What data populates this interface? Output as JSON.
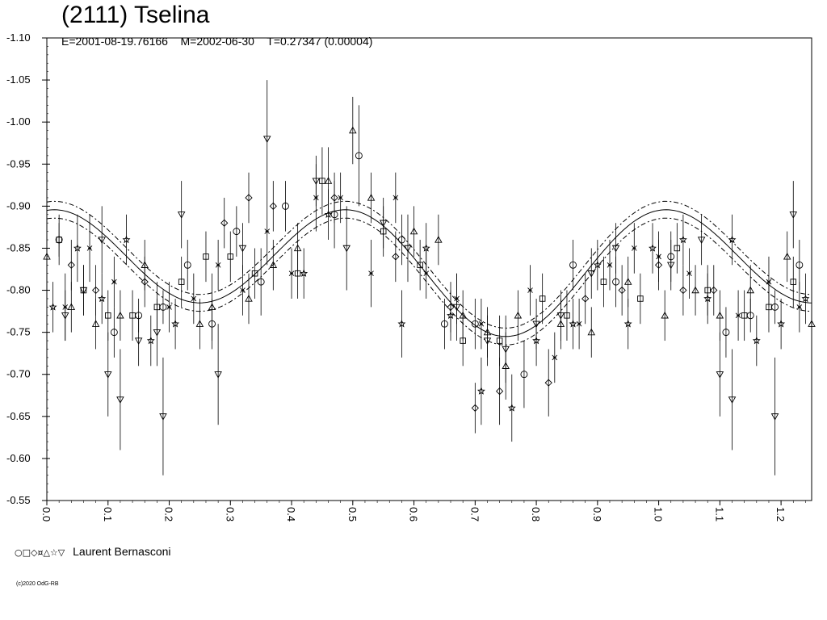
{
  "header": {
    "title": "(2111) Tselina",
    "subtitle": "E=2001-08-19.76166    M=2002-06-30    T=0.27347 (0.00004)"
  },
  "legend": {
    "symbols": "○□◇¤△☆▽",
    "observer": "Laurent Bernasconi"
  },
  "footer": {
    "copyright": "(c)2020 OdG-RB"
  },
  "chart_data": {
    "type": "scatter",
    "title": "(2111) Tselina",
    "subtitle": "E=2001-08-19.76166    M=2002-06-30    T=0.27347 (0.00004)",
    "xlabel": "",
    "ylabel": "",
    "xlim": [
      0.0,
      1.25
    ],
    "ylim": [
      -1.1,
      -0.55
    ],
    "y_inverted_display": true,
    "x_ticks": [
      "0.0",
      "0.1",
      "0.2",
      "0.3",
      "0.4",
      "0.5",
      "0.6",
      "0.7",
      "0.8",
      "0.9",
      "1.0",
      "1.1",
      "1.2"
    ],
    "y_ticks": [
      "-1.10",
      "-1.05",
      "-1.00",
      "-0.95",
      "-0.90",
      "-0.85",
      "-0.80",
      "-0.75",
      "-0.70",
      "-0.65",
      "-0.60",
      "-0.55"
    ],
    "grid": false,
    "legend_position": "bottom-left",
    "fit_curve": {
      "description": "Fourier fit",
      "mean": -0.83,
      "harmonics": [
        {
          "n": 1,
          "amp": 0.02,
          "phase": 0.25
        },
        {
          "n": 2,
          "amp": 0.065,
          "phase": 0.5
        }
      ],
      "band": 0.01
    },
    "series": [
      {
        "name": "",
        "symbol": "circle",
        "points": [
          [
            0.02,
            -0.86,
            0.03
          ],
          [
            0.11,
            -0.75,
            0.03
          ],
          [
            0.15,
            -0.77,
            0.02
          ],
          [
            0.19,
            -0.78,
            0.02
          ],
          [
            0.23,
            -0.83,
            0.03
          ],
          [
            0.27,
            -0.76,
            0.03
          ],
          [
            0.31,
            -0.87,
            0.03
          ],
          [
            0.35,
            -0.81,
            0.04
          ],
          [
            0.39,
            -0.9,
            0.03
          ],
          [
            0.47,
            -0.89,
            0.04
          ],
          [
            0.51,
            -0.96,
            0.06
          ],
          [
            0.58,
            -0.86,
            0.03
          ],
          [
            0.65,
            -0.76,
            0.03
          ],
          [
            0.7,
            -0.76,
            0.03
          ],
          [
            0.78,
            -0.7,
            0.04
          ],
          [
            0.86,
            -0.83,
            0.03
          ],
          [
            0.93,
            -0.81,
            0.03
          ],
          [
            1.02,
            -0.84,
            0.03
          ],
          [
            1.11,
            -0.75,
            0.03
          ],
          [
            1.15,
            -0.77,
            0.02
          ],
          [
            1.19,
            -0.78,
            0.02
          ],
          [
            1.23,
            -0.83,
            0.03
          ]
        ]
      },
      {
        "name": "",
        "symbol": "square",
        "points": [
          [
            0.02,
            -0.86,
            0.02
          ],
          [
            0.06,
            -0.8,
            0.03
          ],
          [
            0.1,
            -0.77,
            0.03
          ],
          [
            0.14,
            -0.77,
            0.03
          ],
          [
            0.18,
            -0.78,
            0.03
          ],
          [
            0.22,
            -0.81,
            0.03
          ],
          [
            0.26,
            -0.84,
            0.03
          ],
          [
            0.3,
            -0.84,
            0.03
          ],
          [
            0.34,
            -0.82,
            0.03
          ],
          [
            0.41,
            -0.82,
            0.03
          ],
          [
            0.45,
            -0.93,
            0.04
          ],
          [
            0.55,
            -0.87,
            0.03
          ],
          [
            0.61,
            -0.83,
            0.03
          ],
          [
            0.68,
            -0.74,
            0.03
          ],
          [
            0.74,
            -0.74,
            0.03
          ],
          [
            0.81,
            -0.79,
            0.03
          ],
          [
            0.85,
            -0.77,
            0.03
          ],
          [
            0.91,
            -0.81,
            0.03
          ],
          [
            0.97,
            -0.79,
            0.03
          ],
          [
            1.03,
            -0.85,
            0.03
          ],
          [
            1.08,
            -0.8,
            0.03
          ],
          [
            1.14,
            -0.77,
            0.03
          ],
          [
            1.18,
            -0.78,
            0.03
          ],
          [
            1.22,
            -0.81,
            0.03
          ]
        ]
      },
      {
        "name": "",
        "symbol": "diamond",
        "points": [
          [
            0.04,
            -0.83,
            0.03
          ],
          [
            0.08,
            -0.8,
            0.03
          ],
          [
            0.16,
            -0.81,
            0.03
          ],
          [
            0.29,
            -0.88,
            0.03
          ],
          [
            0.33,
            -0.91,
            0.03
          ],
          [
            0.37,
            -0.9,
            0.03
          ],
          [
            0.47,
            -0.91,
            0.03
          ],
          [
            0.57,
            -0.84,
            0.03
          ],
          [
            0.66,
            -0.78,
            0.03
          ],
          [
            0.7,
            -0.66,
            0.03
          ],
          [
            0.74,
            -0.68,
            0.04
          ],
          [
            0.82,
            -0.69,
            0.04
          ],
          [
            0.88,
            -0.79,
            0.03
          ],
          [
            0.94,
            -0.8,
            0.03
          ],
          [
            1.0,
            -0.83,
            0.03
          ],
          [
            1.04,
            -0.8,
            0.03
          ],
          [
            1.09,
            -0.8,
            0.03
          ]
        ]
      },
      {
        "name": "",
        "symbol": "cross",
        "points": [
          [
            0.03,
            -0.78,
            0.04
          ],
          [
            0.07,
            -0.85,
            0.04
          ],
          [
            0.11,
            -0.81,
            0.03
          ],
          [
            0.2,
            -0.78,
            0.03
          ],
          [
            0.24,
            -0.79,
            0.03
          ],
          [
            0.28,
            -0.83,
            0.03
          ],
          [
            0.32,
            -0.8,
            0.03
          ],
          [
            0.36,
            -0.87,
            0.04
          ],
          [
            0.4,
            -0.82,
            0.03
          ],
          [
            0.44,
            -0.91,
            0.04
          ],
          [
            0.48,
            -0.91,
            0.03
          ],
          [
            0.53,
            -0.82,
            0.04
          ],
          [
            0.57,
            -0.91,
            0.03
          ],
          [
            0.62,
            -0.82,
            0.03
          ],
          [
            0.67,
            -0.79,
            0.03
          ],
          [
            0.71,
            -0.76,
            0.03
          ],
          [
            0.79,
            -0.8,
            0.03
          ],
          [
            0.83,
            -0.72,
            0.03
          ],
          [
            0.87,
            -0.76,
            0.03
          ],
          [
            0.92,
            -0.83,
            0.03
          ],
          [
            0.96,
            -0.85,
            0.03
          ],
          [
            1.0,
            -0.84,
            0.03
          ],
          [
            1.05,
            -0.82,
            0.03
          ],
          [
            1.13,
            -0.77,
            0.03
          ],
          [
            1.18,
            -0.81,
            0.03
          ],
          [
            1.23,
            -0.78,
            0.03
          ]
        ]
      },
      {
        "name": "",
        "symbol": "triangle-up",
        "points": [
          [
            0.0,
            -0.84,
            0.03
          ],
          [
            0.04,
            -0.78,
            0.03
          ],
          [
            0.08,
            -0.76,
            0.03
          ],
          [
            0.12,
            -0.77,
            0.03
          ],
          [
            0.16,
            -0.83,
            0.03
          ],
          [
            0.25,
            -0.76,
            0.03
          ],
          [
            0.27,
            -0.78,
            0.04
          ],
          [
            0.33,
            -0.79,
            0.03
          ],
          [
            0.37,
            -0.83,
            0.03
          ],
          [
            0.41,
            -0.85,
            0.03
          ],
          [
            0.46,
            -0.93,
            0.04
          ],
          [
            0.5,
            -0.99,
            0.04
          ],
          [
            0.53,
            -0.91,
            0.03
          ],
          [
            0.6,
            -0.87,
            0.03
          ],
          [
            0.64,
            -0.86,
            0.03
          ],
          [
            0.68,
            -0.77,
            0.03
          ],
          [
            0.72,
            -0.75,
            0.03
          ],
          [
            0.75,
            -0.71,
            0.04
          ],
          [
            0.77,
            -0.77,
            0.03
          ],
          [
            0.84,
            -0.76,
            0.03
          ],
          [
            0.89,
            -0.75,
            0.03
          ],
          [
            0.95,
            -0.81,
            0.03
          ],
          [
            1.01,
            -0.77,
            0.03
          ],
          [
            1.06,
            -0.8,
            0.03
          ],
          [
            1.1,
            -0.77,
            0.03
          ],
          [
            1.15,
            -0.8,
            0.03
          ],
          [
            1.21,
            -0.84,
            0.03
          ],
          [
            1.25,
            -0.76,
            0.03
          ]
        ]
      },
      {
        "name": "",
        "symbol": "star",
        "points": [
          [
            0.01,
            -0.78,
            0.03
          ],
          [
            0.05,
            -0.85,
            0.04
          ],
          [
            0.09,
            -0.79,
            0.03
          ],
          [
            0.13,
            -0.86,
            0.03
          ],
          [
            0.17,
            -0.74,
            0.03
          ],
          [
            0.21,
            -0.76,
            0.03
          ],
          [
            0.42,
            -0.82,
            0.03
          ],
          [
            0.46,
            -0.89,
            0.03
          ],
          [
            0.58,
            -0.76,
            0.04
          ],
          [
            0.62,
            -0.85,
            0.03
          ],
          [
            0.66,
            -0.77,
            0.03
          ],
          [
            0.71,
            -0.68,
            0.04
          ],
          [
            0.76,
            -0.66,
            0.04
          ],
          [
            0.8,
            -0.74,
            0.03
          ],
          [
            0.86,
            -0.76,
            0.03
          ],
          [
            0.9,
            -0.83,
            0.03
          ],
          [
            0.95,
            -0.76,
            0.03
          ],
          [
            0.99,
            -0.85,
            0.03
          ],
          [
            1.04,
            -0.86,
            0.03
          ],
          [
            1.08,
            -0.79,
            0.03
          ],
          [
            1.12,
            -0.86,
            0.03
          ],
          [
            1.16,
            -0.74,
            0.03
          ],
          [
            1.2,
            -0.76,
            0.03
          ],
          [
            1.24,
            -0.79,
            0.03
          ]
        ]
      },
      {
        "name": "",
        "symbol": "triangle-down",
        "points": [
          [
            0.03,
            -0.77,
            0.03
          ],
          [
            0.06,
            -0.8,
            0.03
          ],
          [
            0.09,
            -0.86,
            0.04
          ],
          [
            0.1,
            -0.7,
            0.05
          ],
          [
            0.12,
            -0.67,
            0.06
          ],
          [
            0.15,
            -0.74,
            0.03
          ],
          [
            0.18,
            -0.75,
            0.04
          ],
          [
            0.19,
            -0.65,
            0.07
          ],
          [
            0.22,
            -0.89,
            0.04
          ],
          [
            0.28,
            -0.7,
            0.06
          ],
          [
            0.32,
            -0.85,
            0.03
          ],
          [
            0.36,
            -0.98,
            0.07
          ],
          [
            0.44,
            -0.93,
            0.03
          ],
          [
            0.49,
            -0.85,
            0.05
          ],
          [
            0.55,
            -0.88,
            0.03
          ],
          [
            0.59,
            -0.85,
            0.04
          ],
          [
            0.67,
            -0.78,
            0.04
          ],
          [
            0.72,
            -0.74,
            0.03
          ],
          [
            0.75,
            -0.73,
            0.04
          ],
          [
            0.8,
            -0.76,
            0.03
          ],
          [
            0.84,
            -0.77,
            0.03
          ],
          [
            0.89,
            -0.82,
            0.03
          ],
          [
            0.93,
            -0.85,
            0.03
          ],
          [
            1.02,
            -0.83,
            0.03
          ],
          [
            1.07,
            -0.86,
            0.03
          ],
          [
            1.1,
            -0.7,
            0.05
          ],
          [
            1.12,
            -0.67,
            0.06
          ],
          [
            1.19,
            -0.65,
            0.07
          ],
          [
            1.22,
            -0.89,
            0.04
          ]
        ]
      }
    ]
  }
}
